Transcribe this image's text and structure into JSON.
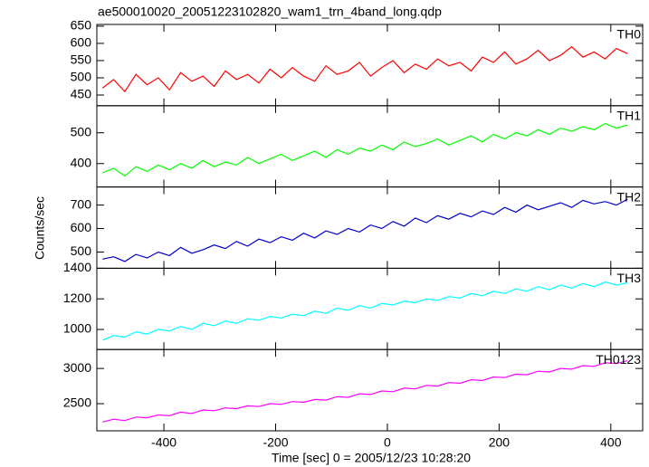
{
  "figure": {
    "title": "ae500010020_20051223102820_wam1_trn_4band_long.qdp",
    "xlabel": "Time [sec] 0 = 2005/12/23 10:28:20",
    "ylabel": "Counts/sec"
  },
  "chart_data": [
    {
      "type": "line",
      "xlim": [
        -520,
        457
      ],
      "xticks": [
        -400,
        -200,
        0,
        200,
        400
      ],
      "ylim": [
        419,
        655
      ],
      "yticks": [
        450,
        500,
        550,
        600,
        650
      ],
      "x": [
        -510,
        -490,
        -470,
        -450,
        -430,
        -410,
        -390,
        -370,
        -350,
        -330,
        -310,
        -290,
        -270,
        -250,
        -230,
        -210,
        -190,
        -170,
        -150,
        -130,
        -110,
        -90,
        -70,
        -50,
        -30,
        -10,
        10,
        30,
        50,
        70,
        90,
        110,
        130,
        150,
        170,
        190,
        210,
        230,
        250,
        270,
        290,
        310,
        330,
        350,
        370,
        390,
        410,
        430
      ],
      "series": [
        {
          "name": "TH0",
          "color": "#ff0000",
          "values": [
            470,
            495,
            460,
            510,
            480,
            500,
            465,
            515,
            490,
            505,
            475,
            520,
            495,
            510,
            485,
            525,
            500,
            530,
            505,
            490,
            535,
            510,
            520,
            545,
            505,
            530,
            550,
            515,
            540,
            525,
            555,
            535,
            545,
            520,
            560,
            545,
            575,
            540,
            555,
            580,
            550,
            565,
            590,
            560,
            575,
            555,
            585,
            570
          ]
        }
      ]
    },
    {
      "type": "line",
      "xlim": [
        -520,
        457
      ],
      "xticks": [
        -400,
        -200,
        0,
        200,
        400
      ],
      "ylim": [
        324,
        588
      ],
      "yticks": [
        400,
        500
      ],
      "x": [
        -510,
        -490,
        -470,
        -450,
        -430,
        -410,
        -390,
        -370,
        -350,
        -330,
        -310,
        -290,
        -270,
        -250,
        -230,
        -210,
        -190,
        -170,
        -150,
        -130,
        -110,
        -90,
        -70,
        -50,
        -30,
        -10,
        10,
        30,
        50,
        70,
        90,
        110,
        130,
        150,
        170,
        190,
        210,
        230,
        250,
        270,
        290,
        310,
        330,
        350,
        370,
        390,
        410,
        430
      ],
      "series": [
        {
          "name": "TH1",
          "color": "#00ff00",
          "values": [
            370,
            385,
            360,
            390,
            375,
            395,
            380,
            400,
            385,
            410,
            390,
            405,
            395,
            420,
            400,
            415,
            430,
            410,
            425,
            440,
            420,
            445,
            430,
            450,
            440,
            460,
            445,
            470,
            455,
            465,
            480,
            460,
            475,
            490,
            470,
            495,
            480,
            500,
            490,
            510,
            495,
            515,
            505,
            520,
            510,
            530,
            515,
            525
          ]
        }
      ]
    },
    {
      "type": "line",
      "xlim": [
        -520,
        457
      ],
      "xticks": [
        -400,
        -200,
        0,
        200,
        400
      ],
      "ylim": [
        431,
        777
      ],
      "yticks": [
        500,
        600,
        700
      ],
      "x": [
        -510,
        -490,
        -470,
        -450,
        -430,
        -410,
        -390,
        -370,
        -350,
        -330,
        -310,
        -290,
        -270,
        -250,
        -230,
        -210,
        -190,
        -170,
        -150,
        -130,
        -110,
        -90,
        -70,
        -50,
        -30,
        -10,
        10,
        30,
        50,
        70,
        90,
        110,
        130,
        150,
        170,
        190,
        210,
        230,
        250,
        270,
        290,
        310,
        330,
        350,
        370,
        390,
        410,
        430
      ],
      "series": [
        {
          "name": "TH2",
          "color": "#0000cc",
          "values": [
            470,
            480,
            460,
            490,
            475,
            500,
            485,
            520,
            495,
            510,
            530,
            515,
            545,
            525,
            555,
            540,
            565,
            550,
            580,
            560,
            590,
            575,
            600,
            585,
            615,
            600,
            630,
            610,
            645,
            625,
            655,
            640,
            665,
            650,
            675,
            660,
            690,
            670,
            700,
            680,
            695,
            710,
            690,
            720,
            705,
            715,
            700,
            725
          ]
        }
      ]
    },
    {
      "type": "line",
      "xlim": [
        -520,
        457
      ],
      "xticks": [
        -400,
        -200,
        0,
        200,
        400
      ],
      "ylim": [
        869,
        1400
      ],
      "yticks": [
        1000,
        1200,
        1400
      ],
      "x": [
        -510,
        -490,
        -470,
        -450,
        -430,
        -410,
        -390,
        -370,
        -350,
        -330,
        -310,
        -290,
        -270,
        -250,
        -230,
        -210,
        -190,
        -170,
        -150,
        -130,
        -110,
        -90,
        -70,
        -50,
        -30,
        -10,
        10,
        30,
        50,
        70,
        90,
        110,
        130,
        150,
        170,
        190,
        210,
        230,
        250,
        270,
        290,
        310,
        330,
        350,
        370,
        390,
        410,
        430
      ],
      "series": [
        {
          "name": "TH3",
          "color": "#00ffff",
          "values": [
            930,
            960,
            950,
            985,
            970,
            1000,
            990,
            1020,
            1000,
            1040,
            1025,
            1055,
            1040,
            1070,
            1060,
            1085,
            1075,
            1100,
            1090,
            1120,
            1105,
            1140,
            1125,
            1155,
            1140,
            1170,
            1160,
            1185,
            1175,
            1200,
            1190,
            1215,
            1205,
            1235,
            1220,
            1250,
            1235,
            1265,
            1250,
            1280,
            1260,
            1290,
            1270,
            1300,
            1280,
            1310,
            1290,
            1305
          ]
        }
      ]
    },
    {
      "type": "line",
      "xlim": [
        -520,
        457
      ],
      "xticks": [
        -400,
        -200,
        0,
        200,
        400
      ],
      "ylim": [
        2115,
        3269
      ],
      "yticks": [
        2500,
        3000
      ],
      "x": [
        -510,
        -490,
        -470,
        -450,
        -430,
        -410,
        -390,
        -370,
        -350,
        -330,
        -310,
        -290,
        -270,
        -250,
        -230,
        -210,
        -190,
        -170,
        -150,
        -130,
        -110,
        -90,
        -70,
        -50,
        -30,
        -10,
        10,
        30,
        50,
        70,
        90,
        110,
        130,
        150,
        170,
        190,
        210,
        230,
        250,
        270,
        290,
        310,
        330,
        350,
        370,
        390,
        410,
        430
      ],
      "series": [
        {
          "name": "TH0123",
          "color": "#ff00ff",
          "values": [
            2240,
            2280,
            2260,
            2310,
            2300,
            2340,
            2330,
            2380,
            2360,
            2410,
            2400,
            2440,
            2430,
            2470,
            2460,
            2500,
            2490,
            2530,
            2520,
            2560,
            2550,
            2600,
            2590,
            2640,
            2630,
            2680,
            2670,
            2720,
            2710,
            2760,
            2750,
            2800,
            2790,
            2840,
            2830,
            2880,
            2870,
            2920,
            2910,
            2960,
            2950,
            3000,
            2990,
            3040,
            3030,
            3080,
            3070,
            3110
          ]
        }
      ]
    }
  ]
}
